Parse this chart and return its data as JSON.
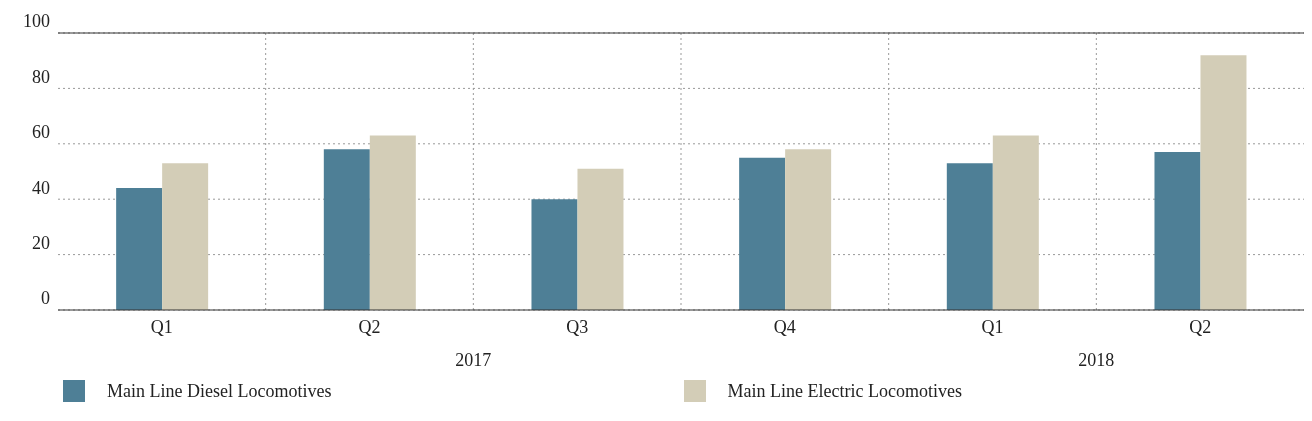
{
  "chart_data": {
    "type": "bar",
    "categories": [
      "Q1",
      "Q2",
      "Q3",
      "Q4",
      "Q1",
      "Q2"
    ],
    "series": [
      {
        "name": "Main Line Diesel Locomotives",
        "color": "#4e7f96",
        "values": [
          44,
          58,
          40,
          55,
          53,
          57
        ]
      },
      {
        "name": "Main Line Electric Locomotives",
        "color": "#d3cdb7",
        "values": [
          53,
          63,
          51,
          58,
          63,
          92
        ]
      }
    ],
    "ylim": [
      0,
      100
    ],
    "yticks": [
      0,
      20,
      40,
      60,
      80,
      100
    ],
    "grid": true,
    "legend": "bottom",
    "annotations": [
      "2017",
      "2018"
    ]
  }
}
